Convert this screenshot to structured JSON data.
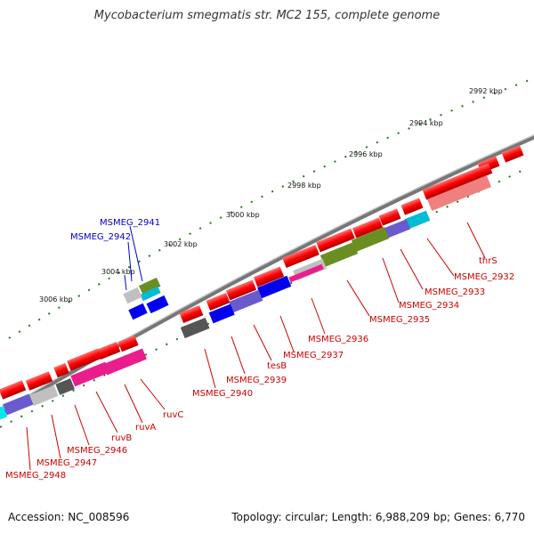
{
  "title": "Mycobacterium smegmatis str. MC2 155, complete genome",
  "footer": {
    "accession": "Accession: NC_008596",
    "summary": "Topology: circular; Length: 6,988,209 bp; Genes: 6,770"
  },
  "scale_labels": [
    "2992 kbp",
    "2994 kbp",
    "2996 kbp",
    "2998 kbp",
    "3000 kbp",
    "3002 kbp",
    "3004 kbp",
    "3006 kbp"
  ],
  "gene_labels_forward": [
    "MSMEG_2941",
    "MSMEG_2942"
  ],
  "gene_labels_reverse": [
    "thrS",
    "MSMEG_2932",
    "MSMEG_2933",
    "MSMEG_2934",
    "MSMEG_2935",
    "MSMEG_2936",
    "MSMEG_2937",
    "tesB",
    "MSMEG_2939",
    "MSMEG_2940",
    "ruvC",
    "ruvA",
    "ruvB",
    "MSMEG_2946",
    "MSMEG_2947",
    "MSMEG_2948"
  ],
  "colors": {
    "backbone": "#808080",
    "cds": "#ff0000",
    "label_reverse": "#cc0000",
    "label_forward": "#0000cc",
    "tick": "#1a7a1a"
  }
}
